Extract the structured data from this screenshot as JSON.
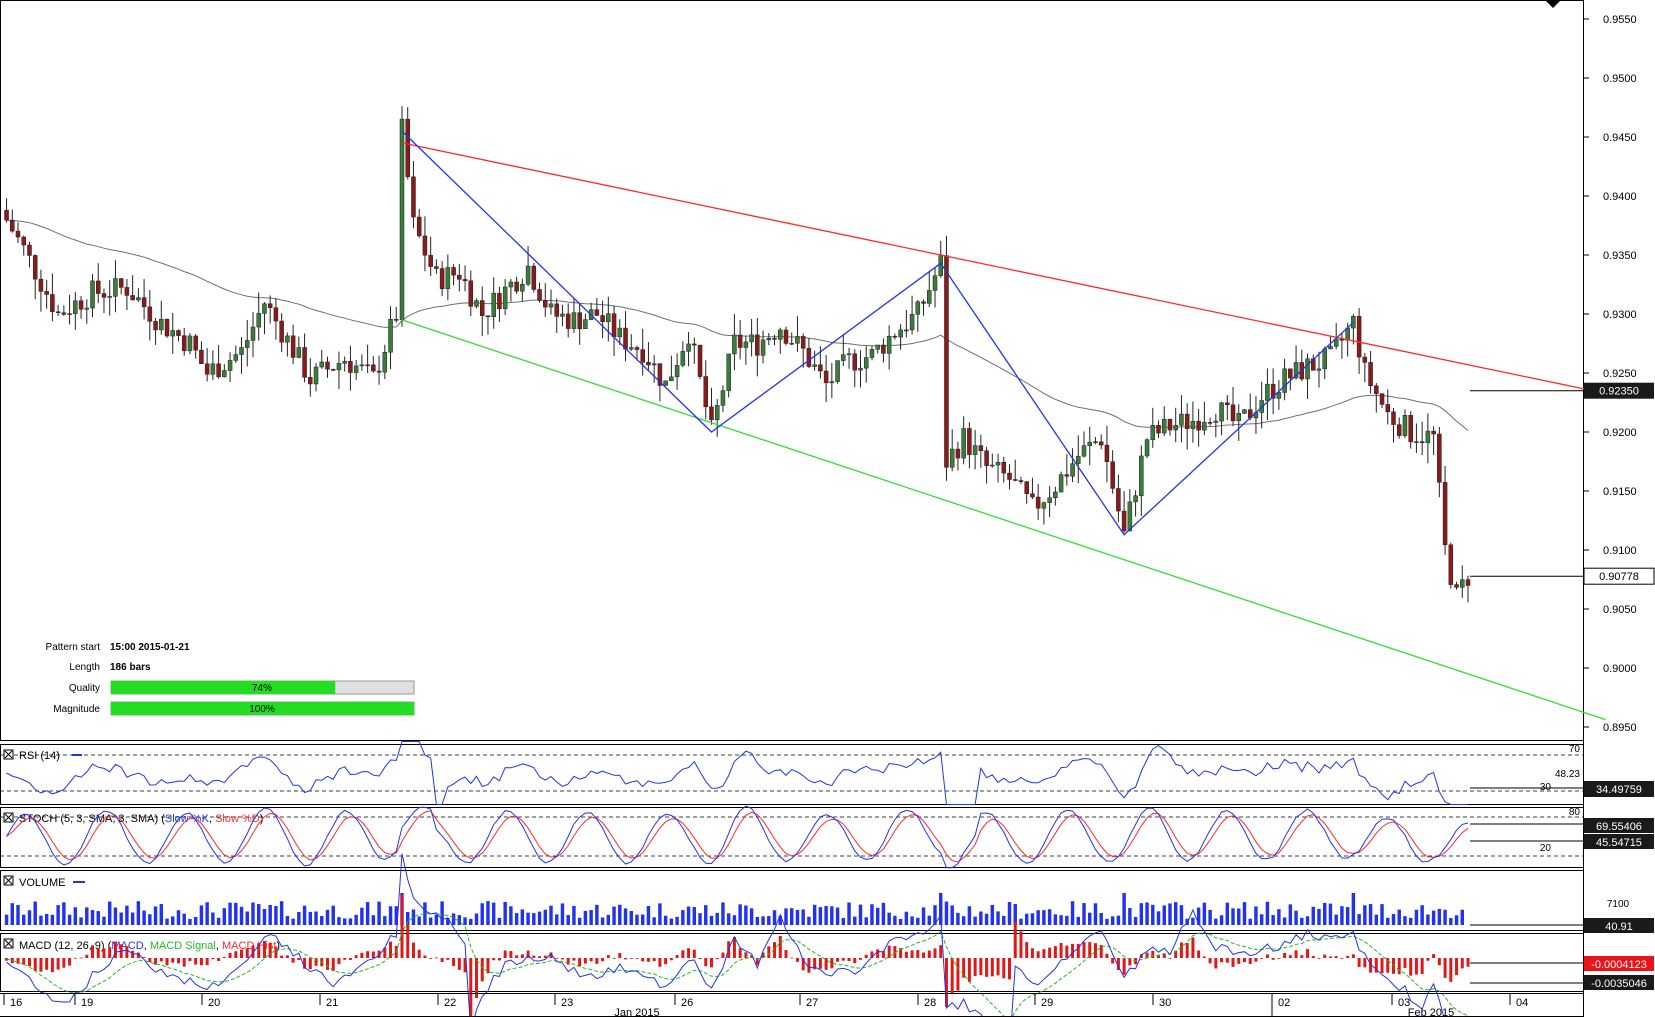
{
  "chart_data": {
    "type": "candlestick",
    "title": "",
    "price_axis": {
      "ticks": [
        "0.9550",
        "0.9500",
        "0.9450",
        "0.9400",
        "0.9350",
        "0.9300",
        "0.9250",
        "0.9200",
        "0.9150",
        "0.9100",
        "0.9050",
        "0.9000",
        "0.8950"
      ],
      "range": [
        0.8928,
        0.9576
      ]
    },
    "last_price": "0.90778",
    "moving_average_value": "0.92350",
    "date_axis": {
      "day_labels": [
        "16",
        "19",
        "20",
        "21",
        "22",
        "23",
        "26",
        "27",
        "28",
        "29",
        "30",
        "02",
        "03",
        "04"
      ],
      "month_labels": [
        "Jan 2015",
        "Feb 2015"
      ]
    },
    "pattern_info": {
      "pattern_start_label": "Pattern start",
      "pattern_start_value": "15:00 2015-01-21",
      "length_label": "Length",
      "length_value": "186 bars",
      "quality_label": "Quality",
      "quality_pct": 74,
      "quality_text": "74%",
      "magnitude_label": "Magnitude",
      "magnitude_pct": 100,
      "magnitude_text": "100%"
    },
    "channel": {
      "resistance": [
        {
          "bar": 0,
          "price": 0.9445
        },
        {
          "bar": 186,
          "price": 0.9257
        }
      ],
      "support": [
        {
          "bar": 0,
          "price": 0.9295
        },
        {
          "bar": 186,
          "price": 0.8995
        }
      ]
    },
    "zigzag": [
      {
        "bar": 0,
        "price": 0.9455
      },
      {
        "bar": 54,
        "price": 0.92
      },
      {
        "bar": 94,
        "price": 0.9343
      },
      {
        "bar": 126,
        "price": 0.9113
      },
      {
        "bar": 166,
        "price": 0.9293
      }
    ],
    "indicators": {
      "rsi": {
        "title": "RSI (14)",
        "levels": [
          "70",
          "30"
        ],
        "value_label": "48.23",
        "value": "34.49759"
      },
      "stoch": {
        "title": "STOCH (5, 3, SMA, 3, SMA)",
        "k_label": "Slow %K",
        "d_label": "Slow %D",
        "levels": [
          "80",
          "20"
        ],
        "k_value": "69.55406",
        "d_value": "45.54715"
      },
      "volume": {
        "title": "VOLUME",
        "axis_label": "7100",
        "value": "40.91"
      },
      "macd": {
        "title": "MACD (12, 26, 9)",
        "macd_label": "MACD",
        "signal_label": "MACD Signal",
        "hist_label": "MACD Hist",
        "signal_value": "-0.0004123",
        "macd_value": "-0.0035046"
      }
    },
    "colors": {
      "bull": "#3a7d3a",
      "bear": "#8b1a1a",
      "resistance": "#ff2a2a",
      "support": "#33dd33",
      "zigzag": "#2233ee",
      "ma": "#707070",
      "badge": "#1a1a1a",
      "quality_fill": "#22dd22"
    }
  }
}
